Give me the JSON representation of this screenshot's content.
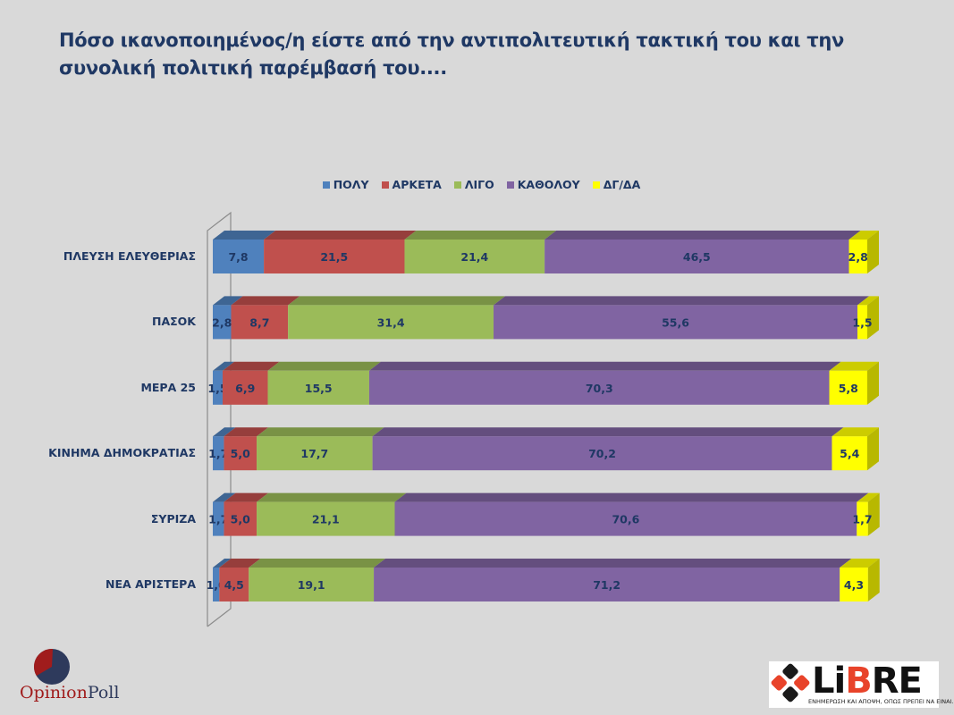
{
  "title": "Πόσο ικανοποιημένος/η είστε από την αντιπολιτευτική τακτική του και την συνολική πολιτική παρέμβασή του....",
  "chart_data": {
    "type": "bar",
    "orientation": "horizontal",
    "stacked": true,
    "percent_stacked": true,
    "three_d": true,
    "title": "Πόσο ικανοποιημένος/η είστε από την αντιπολιτευτική τακτική του και την συνολική πολιτική παρέμβασή του....",
    "xlabel": "",
    "ylabel": "",
    "xlim": [
      0,
      100
    ],
    "grid": false,
    "legend_position": "top",
    "categories": [
      "ΠΛΕΥΣΗ ΕΛΕΥΘΕΡΙΑΣ",
      "ΠΑΣΟΚ",
      "ΜΕΡΑ 25",
      "ΚΙΝΗΜΑ ΔΗΜΟΚΡΑΤΙΑΣ",
      "ΣΥΡΙΖΑ",
      "ΝΕΑ ΑΡΙΣΤΕΡΑ"
    ],
    "series": [
      {
        "name": "ΠΟΛΥ",
        "color": "#4f81bd",
        "values": [
          7.8,
          2.8,
          1.5,
          1.7,
          1.7,
          1.0
        ],
        "labels": [
          "7,8",
          "2,8",
          "1,5",
          "1,7",
          "1,7",
          "1,0"
        ]
      },
      {
        "name": "ΑΡΚΕΤΑ",
        "color": "#c0504d",
        "values": [
          21.5,
          8.7,
          6.9,
          5.0,
          5.0,
          4.5
        ],
        "labels": [
          "21,5",
          "8,7",
          "6,9",
          "5,0",
          "5,0",
          "4,5"
        ]
      },
      {
        "name": "ΛΙΓΟ",
        "color": "#9bbb59",
        "values": [
          21.4,
          31.4,
          15.5,
          17.7,
          21.1,
          19.1
        ],
        "labels": [
          "21,4",
          "31,4",
          "15,5",
          "17,7",
          "21,1",
          "19,1"
        ]
      },
      {
        "name": "ΚΑΘΟΛΟΥ",
        "color": "#8064a2",
        "values": [
          46.5,
          55.6,
          70.3,
          70.2,
          70.6,
          71.2
        ],
        "labels": [
          "46,5",
          "55,6",
          "70,3",
          "70,2",
          "70,6",
          "71,2"
        ]
      },
      {
        "name": "ΔΓ/ΔΑ",
        "color": "#ffff00",
        "values": [
          2.8,
          1.5,
          5.8,
          5.4,
          1.7,
          4.3
        ],
        "labels": [
          "2,8",
          "1,5",
          "5,8",
          "5,4",
          "1,7",
          "4,3"
        ]
      }
    ]
  },
  "logos": {
    "opinionpoll": {
      "part1": "Opinion",
      "part2": "Poll"
    },
    "libre": {
      "word_a": "Li",
      "word_b": "B",
      "word_c": "RE",
      "tagline": "ΕΝΗΜΕΡΩΣΗ ΚΑΙ ΑΠΟΨΗ, ΟΠΩΣ ΠΡΕΠΕΙ ΝΑ ΕΙΝΑΙ..."
    }
  }
}
